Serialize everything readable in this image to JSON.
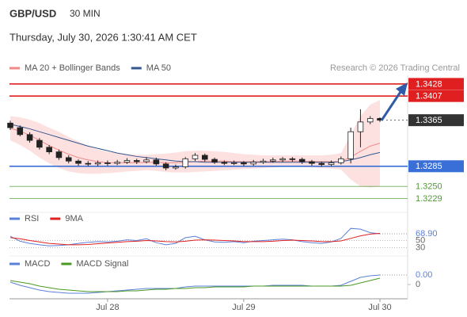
{
  "header": {
    "symbol": "GBP/USD",
    "timeframe": "30 MIN",
    "datetime": "Thursday, July 30, 2026 1:30:41 AM CET",
    "copyright": "Research © 2026 Trading Central"
  },
  "chart_data": [
    {
      "type": "candlestick",
      "categories": [
        null,
        null,
        null,
        null,
        null,
        null,
        null,
        null,
        null,
        null,
        "Jul 28",
        null,
        null,
        null,
        null,
        null,
        null,
        null,
        null,
        null,
        null,
        null,
        null,
        null,
        "Jul 29",
        null,
        null,
        null,
        null,
        null,
        null,
        null,
        null,
        null,
        null,
        null,
        null,
        null,
        "Jul 30"
      ],
      "open": [
        1.336,
        1.3352,
        1.334,
        1.333,
        1.3318,
        1.331,
        1.33,
        1.3294,
        1.329,
        1.3289,
        1.3291,
        1.329,
        1.3292,
        1.3295,
        1.3293,
        1.3296,
        1.3289,
        1.3282,
        1.3284,
        1.3298,
        1.3304,
        1.3297,
        1.3292,
        1.329,
        1.3291,
        1.3289,
        1.3292,
        1.3294,
        1.3296,
        1.3298,
        1.3297,
        1.3293,
        1.329,
        1.3288,
        1.3291,
        1.3298,
        1.3345,
        1.3362,
        1.3368
      ],
      "high": [
        1.3364,
        1.3356,
        1.3344,
        1.3334,
        1.3322,
        1.3314,
        1.3304,
        1.3297,
        1.3294,
        1.3295,
        1.3295,
        1.3296,
        1.3299,
        1.3298,
        1.3301,
        1.33,
        1.3292,
        1.3288,
        1.3301,
        1.3308,
        1.3307,
        1.33,
        1.3295,
        1.3295,
        1.3294,
        1.3296,
        1.3298,
        1.33,
        1.3301,
        1.3301,
        1.33,
        1.3296,
        1.3293,
        1.3295,
        1.3302,
        1.3352,
        1.3384,
        1.3372,
        1.337
      ],
      "low": [
        1.3348,
        1.3337,
        1.3326,
        1.3314,
        1.3306,
        1.3296,
        1.329,
        1.3286,
        1.3285,
        1.3285,
        1.3286,
        1.3287,
        1.3289,
        1.3289,
        1.329,
        1.3286,
        1.3278,
        1.3279,
        1.3281,
        1.3294,
        1.3293,
        1.3289,
        1.3287,
        1.3287,
        1.3285,
        1.3286,
        1.3289,
        1.3291,
        1.3292,
        1.3293,
        1.3289,
        1.3286,
        1.3284,
        1.3285,
        1.3288,
        1.329,
        1.3318,
        1.3358,
        1.3362
      ],
      "close": [
        1.3352,
        1.334,
        1.333,
        1.3318,
        1.331,
        1.33,
        1.3294,
        1.329,
        1.3289,
        1.3291,
        1.329,
        1.3292,
        1.3295,
        1.3293,
        1.3296,
        1.3289,
        1.3282,
        1.3284,
        1.3298,
        1.3304,
        1.3297,
        1.3292,
        1.329,
        1.3291,
        1.3289,
        1.3292,
        1.3294,
        1.3296,
        1.3298,
        1.3297,
        1.3293,
        1.329,
        1.3288,
        1.3291,
        1.3298,
        1.3345,
        1.3362,
        1.3368,
        1.3365
      ],
      "up_color": "#ffffff",
      "down_color": "#222222",
      "series": [
        {
          "name": "MA 20 + Bollinger Bands",
          "color": "#f08a8a",
          "band_color": "#fcd9d9",
          "values": [
            1.3351,
            1.3346,
            1.3339,
            1.333,
            1.3321,
            1.3313,
            1.3306,
            1.33,
            1.3296,
            1.3293,
            1.3291,
            1.3291,
            1.3291,
            1.3291,
            1.3292,
            1.3292,
            1.3291,
            1.3291,
            1.3292,
            1.3293,
            1.3294,
            1.3294,
            1.3294,
            1.3293,
            1.3293,
            1.3293,
            1.3293,
            1.3293,
            1.3294,
            1.3294,
            1.3294,
            1.3293,
            1.3293,
            1.3293,
            1.3293,
            1.3301,
            1.3311,
            1.332,
            1.3325
          ],
          "band_upper": [
            1.3372,
            1.337,
            1.3366,
            1.336,
            1.3352,
            1.3345,
            1.3336,
            1.3328,
            1.332,
            1.3314,
            1.331,
            1.3308,
            1.3306,
            1.3305,
            1.3305,
            1.3306,
            1.3307,
            1.3309,
            1.3311,
            1.3312,
            1.3312,
            1.3311,
            1.331,
            1.3308,
            1.3306,
            1.3305,
            1.3304,
            1.3304,
            1.3304,
            1.3304,
            1.3304,
            1.3304,
            1.3304,
            1.3305,
            1.3308,
            1.334,
            1.3372,
            1.3392,
            1.34
          ],
          "band_lower": [
            1.333,
            1.3322,
            1.3312,
            1.33,
            1.329,
            1.3282,
            1.3276,
            1.3273,
            1.3272,
            1.3272,
            1.3273,
            1.3274,
            1.3276,
            1.3277,
            1.3278,
            1.3277,
            1.3275,
            1.3274,
            1.3274,
            1.3275,
            1.3276,
            1.3277,
            1.3278,
            1.3279,
            1.328,
            1.3281,
            1.3282,
            1.3283,
            1.3284,
            1.3284,
            1.3284,
            1.3283,
            1.3282,
            1.3281,
            1.3279,
            1.3262,
            1.325,
            1.3248,
            1.325
          ]
        },
        {
          "name": "MA 50",
          "color": "#34578f",
          "values": [
            1.3358,
            1.3354,
            1.335,
            1.3345,
            1.334,
            1.3335,
            1.333,
            1.3325,
            1.332,
            1.3316,
            1.3312,
            1.3308,
            1.3305,
            1.3302,
            1.33,
            1.3298,
            1.3296,
            1.3294,
            1.3293,
            1.3293,
            1.3292,
            1.3292,
            1.3292,
            1.3292,
            1.3292,
            1.3292,
            1.3292,
            1.3292,
            1.3292,
            1.3292,
            1.3292,
            1.3292,
            1.3292,
            1.3292,
            1.3293,
            1.3296,
            1.33,
            1.3305,
            1.3309
          ]
        }
      ],
      "levels": [
        {
          "value": 1.3428,
          "label": "1.3428",
          "color": "#e02020",
          "box": true,
          "dash": false
        },
        {
          "value": 1.3407,
          "label": "1.3407",
          "color": "#e02020",
          "box": true,
          "dash": false
        },
        {
          "value": 1.3365,
          "label": "1.3365",
          "color": "#333333",
          "box": true,
          "dash": true
        },
        {
          "value": 1.3285,
          "label": "1.3285",
          "color": "#3b6fd8",
          "box": true,
          "dash": false
        },
        {
          "value": 1.325,
          "label": "1.3250",
          "color": "#4f9a33",
          "box": false,
          "dash": false
        },
        {
          "value": 1.3229,
          "label": "1.3229",
          "color": "#4f9a33",
          "box": false,
          "dash": false
        }
      ],
      "ylim": [
        1.3209,
        1.3443
      ]
    },
    {
      "type": "line",
      "series": [
        {
          "name": "RSI",
          "color": "#5b80d8",
          "last_label": "68.90",
          "values": [
            62,
            48,
            42,
            38,
            35,
            36,
            38,
            42,
            45,
            47,
            46,
            48,
            52,
            50,
            55,
            44,
            38,
            42,
            58,
            62,
            52,
            46,
            45,
            47,
            44,
            48,
            50,
            52,
            54,
            52,
            47,
            44,
            42,
            46,
            56,
            84,
            82,
            72,
            68.9
          ]
        },
        {
          "name": "9MA",
          "color": "#e02020",
          "values": [
            58,
            55,
            50,
            46,
            42,
            40,
            38,
            38,
            39,
            41,
            43,
            45,
            47,
            48,
            50,
            49,
            47,
            46,
            48,
            51,
            52,
            51,
            50,
            49,
            47,
            47,
            47,
            48,
            50,
            51,
            50,
            49,
            47,
            47,
            49,
            56,
            63,
            68,
            70
          ]
        }
      ],
      "ylim": [
        20,
        100
      ],
      "yticks": [
        30,
        50
      ],
      "grid": true
    },
    {
      "type": "line",
      "series": [
        {
          "name": "MACD",
          "color": "#5b80d8",
          "last_label": "0.00",
          "values": [
            0.0003,
            -0.0001,
            -0.0004,
            -0.0007,
            -0.0009,
            -0.001,
            -0.0011,
            -0.0011,
            -0.0011,
            -0.001,
            -0.0009,
            -0.0008,
            -0.0007,
            -0.0006,
            -0.0005,
            -0.0005,
            -0.0005,
            -0.0005,
            -0.0003,
            -0.0002,
            -0.0002,
            -0.0002,
            -0.0002,
            -0.0002,
            -0.0002,
            -0.0002,
            -0.0002,
            -0.0001,
            -0.0001,
            -0.0001,
            -0.0001,
            -0.0002,
            -0.0002,
            -0.0002,
            -0.0001,
            0.0004,
            0.0009,
            0.0011,
            0.0012
          ]
        },
        {
          "name": "MACD Signal",
          "color": "#4a9a22",
          "values": [
            0.0005,
            0.0003,
            0.0001,
            -0.0002,
            -0.0004,
            -0.0006,
            -0.0007,
            -0.0008,
            -0.0009,
            -0.0009,
            -0.0009,
            -0.0009,
            -0.0008,
            -0.0008,
            -0.0007,
            -0.0006,
            -0.0006,
            -0.0005,
            -0.0005,
            -0.0004,
            -0.0004,
            -0.0003,
            -0.0003,
            -0.0003,
            -0.0003,
            -0.0002,
            -0.0002,
            -0.0002,
            -0.0002,
            -0.0002,
            -0.0002,
            -0.0002,
            -0.0002,
            -0.0002,
            -0.0002,
            -0.0001,
            0.0002,
            0.0005,
            0.0008
          ]
        }
      ],
      "ylim": [
        -0.0013,
        0.0019
      ],
      "yticks": [
        0
      ],
      "grid": false
    }
  ]
}
